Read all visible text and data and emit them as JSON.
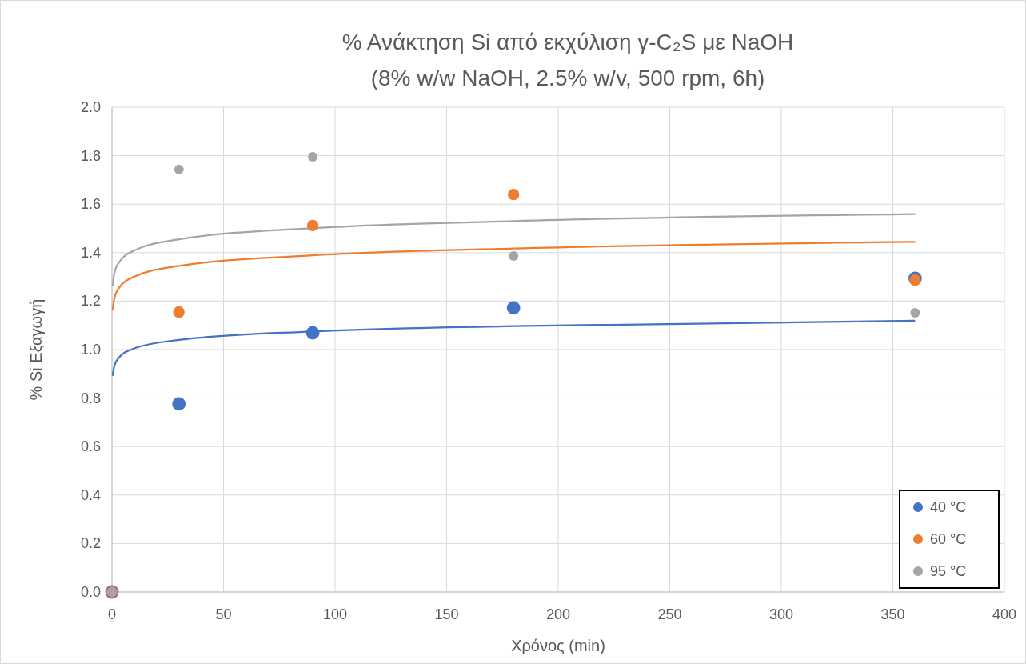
{
  "chart_data": {
    "type": "scatter",
    "title": "% Ανάκτηση Si από εκχύλιση γ-C₂S με NaOH",
    "subtitle": "(8% w/w NaOH, 2.5% w/v, 500 rpm, 6h)",
    "xlabel": "Χρόνος (min)",
    "ylabel": "% Si Εξαγωγή",
    "xlim": [
      0,
      400
    ],
    "ylim": [
      0,
      2
    ],
    "xticks": [
      0,
      50,
      100,
      150,
      200,
      250,
      300,
      350,
      400
    ],
    "yticks": [
      {
        "value": 0,
        "label": "0.0"
      },
      {
        "value": 0.2,
        "label": "0.2"
      },
      {
        "value": 0.4,
        "label": "0.4"
      },
      {
        "value": 0.6,
        "label": "0.6"
      },
      {
        "value": 0.8,
        "label": "0.8"
      },
      {
        "value": 1,
        "label": "1.0"
      },
      {
        "value": 1.2,
        "label": "1.2"
      },
      {
        "value": 1.4,
        "label": "1.4"
      },
      {
        "value": 1.6,
        "label": "1.6"
      },
      {
        "value": 1.8,
        "label": "1.8"
      },
      {
        "value": 2,
        "label": "2.0"
      }
    ],
    "grid": true,
    "legend": "bottom right",
    "marker": "circle",
    "x": [
      0,
      30,
      90,
      180,
      360
    ],
    "series": [
      {
        "name": "40 °C",
        "color": "#4472c4",
        "values": [
          0,
          0.776,
          1.069,
          1.172,
          1.294
        ]
      },
      {
        "name": "60 °C",
        "color": "#ed7d31",
        "values": [
          0,
          1.155,
          1.512,
          1.64,
          1.287
        ]
      },
      {
        "name": "95 °C",
        "color": "#a5a5a5",
        "values": [
          0,
          1.743,
          1.795,
          1.386,
          1.152
        ]
      },
      {
        "type": "line",
        "marker": "none",
        "color": "#4472c4",
        "x": [
          0.3,
          1,
          3,
          10,
          30,
          90,
          180,
          360
        ],
        "values": [
          0.892,
          0.931,
          0.966,
          1.005,
          1.04,
          1.075,
          1.097,
          1.119
        ]
      },
      {
        "type": "line",
        "marker": "none",
        "color": "#ed7d31",
        "x": [
          0.3,
          1,
          3,
          10,
          30,
          90,
          180,
          360
        ],
        "values": [
          1.161,
          1.209,
          1.253,
          1.301,
          1.345,
          1.389,
          1.417,
          1.444
        ]
      },
      {
        "type": "line",
        "marker": "none",
        "color": "#a5a5a5",
        "x": [
          0.3,
          1,
          3,
          10,
          30,
          90,
          180,
          360
        ],
        "values": [
          1.261,
          1.312,
          1.358,
          1.409,
          1.455,
          1.501,
          1.53,
          1.559
        ]
      }
    ]
  }
}
